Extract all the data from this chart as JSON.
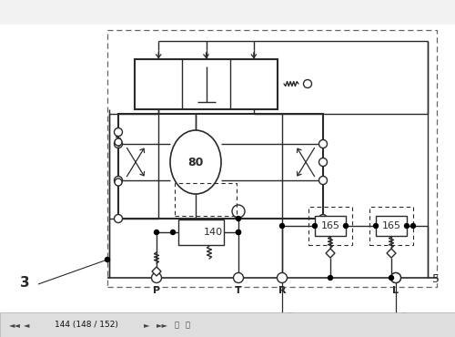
{
  "bg_color": "#f2f2f2",
  "diagram_bg": "#ffffff",
  "lc": "#2a2a2a",
  "nav_bg": "#dedede",
  "nav_border": "#aaaaaa",
  "page_label": "144 (148 / 152)",
  "port_labels": [
    "P",
    "T",
    "R",
    "L"
  ],
  "motor_label": "80",
  "comp140": "140",
  "comp165a": "165",
  "comp165b": "165",
  "label3": "3",
  "label5": "5",
  "rot10": "10"
}
